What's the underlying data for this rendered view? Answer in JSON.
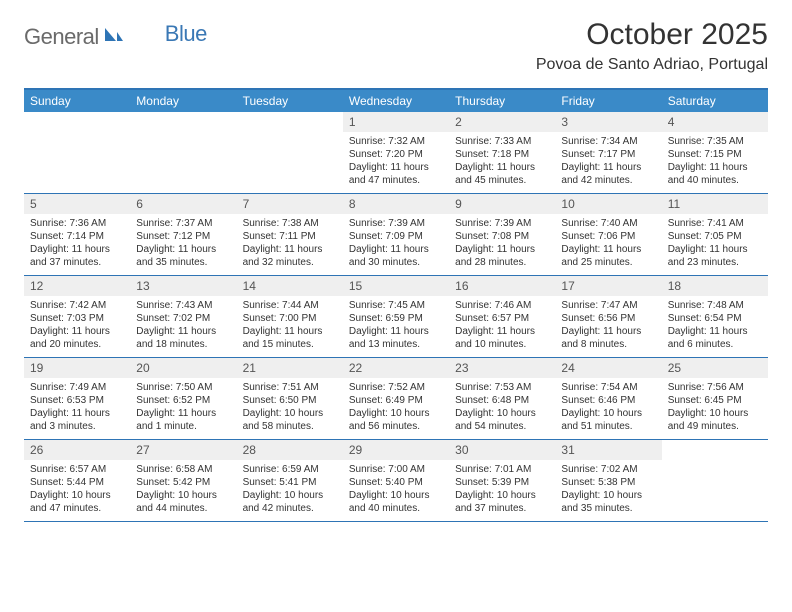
{
  "logo": {
    "text1": "General",
    "text2": "Blue"
  },
  "title": "October 2025",
  "location": "Povoa de Santo Adriao, Portugal",
  "colors": {
    "header_blue": "#3a8ac8",
    "border_blue": "#2e74b5",
    "daynum_bg": "#efefef",
    "logo_gray": "#6a6a6a",
    "logo_blue": "#3a78b5"
  },
  "dow": [
    "Sunday",
    "Monday",
    "Tuesday",
    "Wednesday",
    "Thursday",
    "Friday",
    "Saturday"
  ],
  "weeks": [
    [
      {
        "day": "",
        "sunrise": "",
        "sunset": "",
        "daylight": ""
      },
      {
        "day": "",
        "sunrise": "",
        "sunset": "",
        "daylight": ""
      },
      {
        "day": "",
        "sunrise": "",
        "sunset": "",
        "daylight": ""
      },
      {
        "day": "1",
        "sunrise": "Sunrise: 7:32 AM",
        "sunset": "Sunset: 7:20 PM",
        "daylight": "Daylight: 11 hours and 47 minutes."
      },
      {
        "day": "2",
        "sunrise": "Sunrise: 7:33 AM",
        "sunset": "Sunset: 7:18 PM",
        "daylight": "Daylight: 11 hours and 45 minutes."
      },
      {
        "day": "3",
        "sunrise": "Sunrise: 7:34 AM",
        "sunset": "Sunset: 7:17 PM",
        "daylight": "Daylight: 11 hours and 42 minutes."
      },
      {
        "day": "4",
        "sunrise": "Sunrise: 7:35 AM",
        "sunset": "Sunset: 7:15 PM",
        "daylight": "Daylight: 11 hours and 40 minutes."
      }
    ],
    [
      {
        "day": "5",
        "sunrise": "Sunrise: 7:36 AM",
        "sunset": "Sunset: 7:14 PM",
        "daylight": "Daylight: 11 hours and 37 minutes."
      },
      {
        "day": "6",
        "sunrise": "Sunrise: 7:37 AM",
        "sunset": "Sunset: 7:12 PM",
        "daylight": "Daylight: 11 hours and 35 minutes."
      },
      {
        "day": "7",
        "sunrise": "Sunrise: 7:38 AM",
        "sunset": "Sunset: 7:11 PM",
        "daylight": "Daylight: 11 hours and 32 minutes."
      },
      {
        "day": "8",
        "sunrise": "Sunrise: 7:39 AM",
        "sunset": "Sunset: 7:09 PM",
        "daylight": "Daylight: 11 hours and 30 minutes."
      },
      {
        "day": "9",
        "sunrise": "Sunrise: 7:39 AM",
        "sunset": "Sunset: 7:08 PM",
        "daylight": "Daylight: 11 hours and 28 minutes."
      },
      {
        "day": "10",
        "sunrise": "Sunrise: 7:40 AM",
        "sunset": "Sunset: 7:06 PM",
        "daylight": "Daylight: 11 hours and 25 minutes."
      },
      {
        "day": "11",
        "sunrise": "Sunrise: 7:41 AM",
        "sunset": "Sunset: 7:05 PM",
        "daylight": "Daylight: 11 hours and 23 minutes."
      }
    ],
    [
      {
        "day": "12",
        "sunrise": "Sunrise: 7:42 AM",
        "sunset": "Sunset: 7:03 PM",
        "daylight": "Daylight: 11 hours and 20 minutes."
      },
      {
        "day": "13",
        "sunrise": "Sunrise: 7:43 AM",
        "sunset": "Sunset: 7:02 PM",
        "daylight": "Daylight: 11 hours and 18 minutes."
      },
      {
        "day": "14",
        "sunrise": "Sunrise: 7:44 AM",
        "sunset": "Sunset: 7:00 PM",
        "daylight": "Daylight: 11 hours and 15 minutes."
      },
      {
        "day": "15",
        "sunrise": "Sunrise: 7:45 AM",
        "sunset": "Sunset: 6:59 PM",
        "daylight": "Daylight: 11 hours and 13 minutes."
      },
      {
        "day": "16",
        "sunrise": "Sunrise: 7:46 AM",
        "sunset": "Sunset: 6:57 PM",
        "daylight": "Daylight: 11 hours and 10 minutes."
      },
      {
        "day": "17",
        "sunrise": "Sunrise: 7:47 AM",
        "sunset": "Sunset: 6:56 PM",
        "daylight": "Daylight: 11 hours and 8 minutes."
      },
      {
        "day": "18",
        "sunrise": "Sunrise: 7:48 AM",
        "sunset": "Sunset: 6:54 PM",
        "daylight": "Daylight: 11 hours and 6 minutes."
      }
    ],
    [
      {
        "day": "19",
        "sunrise": "Sunrise: 7:49 AM",
        "sunset": "Sunset: 6:53 PM",
        "daylight": "Daylight: 11 hours and 3 minutes."
      },
      {
        "day": "20",
        "sunrise": "Sunrise: 7:50 AM",
        "sunset": "Sunset: 6:52 PM",
        "daylight": "Daylight: 11 hours and 1 minute."
      },
      {
        "day": "21",
        "sunrise": "Sunrise: 7:51 AM",
        "sunset": "Sunset: 6:50 PM",
        "daylight": "Daylight: 10 hours and 58 minutes."
      },
      {
        "day": "22",
        "sunrise": "Sunrise: 7:52 AM",
        "sunset": "Sunset: 6:49 PM",
        "daylight": "Daylight: 10 hours and 56 minutes."
      },
      {
        "day": "23",
        "sunrise": "Sunrise: 7:53 AM",
        "sunset": "Sunset: 6:48 PM",
        "daylight": "Daylight: 10 hours and 54 minutes."
      },
      {
        "day": "24",
        "sunrise": "Sunrise: 7:54 AM",
        "sunset": "Sunset: 6:46 PM",
        "daylight": "Daylight: 10 hours and 51 minutes."
      },
      {
        "day": "25",
        "sunrise": "Sunrise: 7:56 AM",
        "sunset": "Sunset: 6:45 PM",
        "daylight": "Daylight: 10 hours and 49 minutes."
      }
    ],
    [
      {
        "day": "26",
        "sunrise": "Sunrise: 6:57 AM",
        "sunset": "Sunset: 5:44 PM",
        "daylight": "Daylight: 10 hours and 47 minutes."
      },
      {
        "day": "27",
        "sunrise": "Sunrise: 6:58 AM",
        "sunset": "Sunset: 5:42 PM",
        "daylight": "Daylight: 10 hours and 44 minutes."
      },
      {
        "day": "28",
        "sunrise": "Sunrise: 6:59 AM",
        "sunset": "Sunset: 5:41 PM",
        "daylight": "Daylight: 10 hours and 42 minutes."
      },
      {
        "day": "29",
        "sunrise": "Sunrise: 7:00 AM",
        "sunset": "Sunset: 5:40 PM",
        "daylight": "Daylight: 10 hours and 40 minutes."
      },
      {
        "day": "30",
        "sunrise": "Sunrise: 7:01 AM",
        "sunset": "Sunset: 5:39 PM",
        "daylight": "Daylight: 10 hours and 37 minutes."
      },
      {
        "day": "31",
        "sunrise": "Sunrise: 7:02 AM",
        "sunset": "Sunset: 5:38 PM",
        "daylight": "Daylight: 10 hours and 35 minutes."
      },
      {
        "day": "",
        "sunrise": "",
        "sunset": "",
        "daylight": ""
      }
    ]
  ]
}
